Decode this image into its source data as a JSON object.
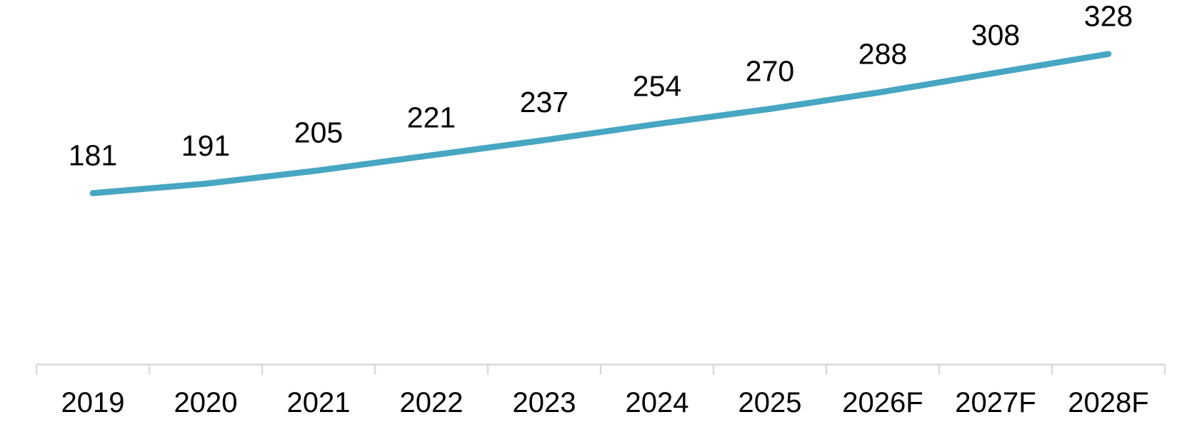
{
  "chart_data": {
    "type": "line",
    "categories": [
      "2019",
      "2020",
      "2021",
      "2022",
      "2023",
      "2024",
      "2025",
      "2026F",
      "2027F",
      "2028F"
    ],
    "values": [
      181,
      191,
      205,
      221,
      237,
      254,
      270,
      288,
      308,
      328
    ],
    "data_labels": [
      "181",
      "191",
      "205",
      "221",
      "237",
      "254",
      "270",
      "288",
      "308",
      "328"
    ],
    "title": "",
    "xlabel": "",
    "ylabel": "",
    "ylim": [
      0,
      385
    ],
    "grid": false,
    "legend": "none",
    "y_axis_visible": false,
    "data_labels_position": "above",
    "line_smooth": false,
    "colors": {
      "line": "#47A6C2",
      "axis": "#D9D9D9",
      "text": "#000000",
      "background": "#FFFFFF"
    }
  }
}
